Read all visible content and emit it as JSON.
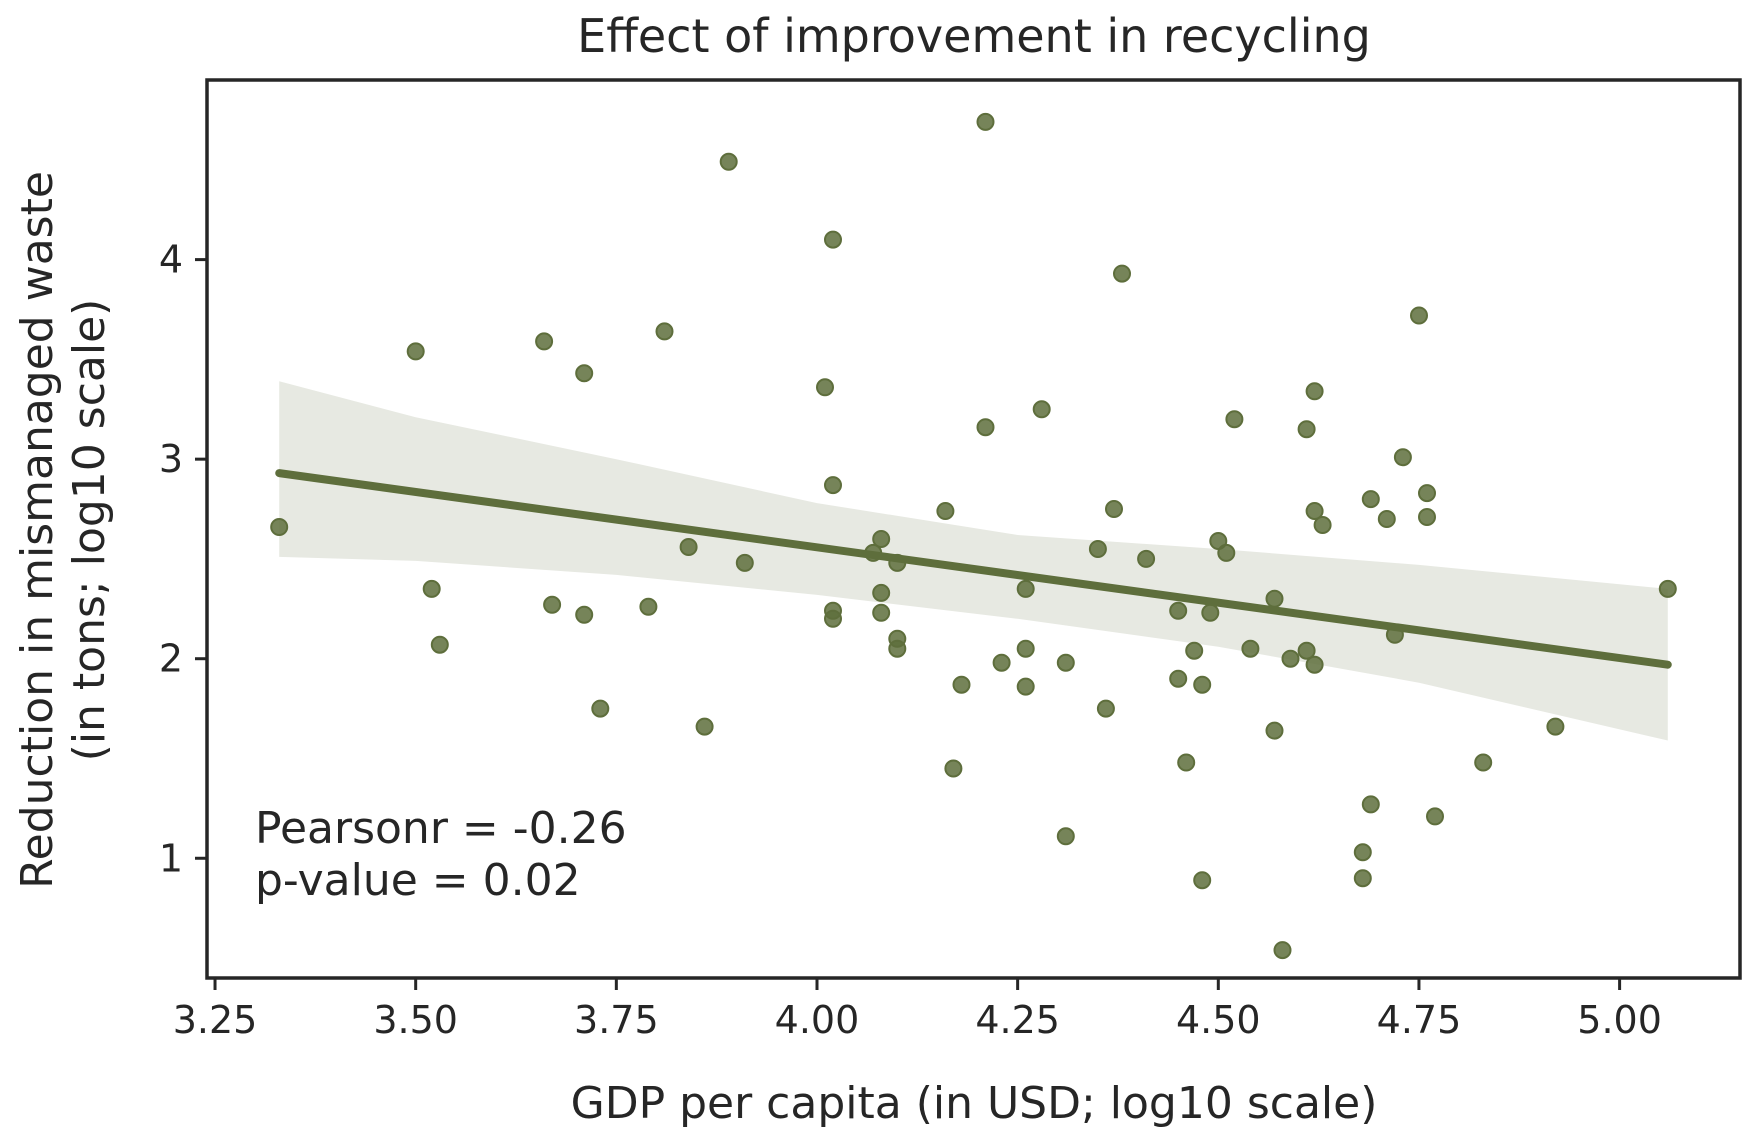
{
  "chart_data": {
    "type": "scatter",
    "title": "Effect of improvement in recycling",
    "xlabel": "GDP per capita (in USD; log10 scale)",
    "ylabel_lines": [
      "Reduction in mismanaged waste",
      "(in tons; log10 scale)"
    ],
    "xlim": [
      3.24,
      5.15
    ],
    "ylim": [
      0.4,
      4.9
    ],
    "xticks": [
      3.25,
      3.5,
      3.75,
      4.0,
      4.25,
      4.5,
      4.75,
      5.0
    ],
    "xtick_labels": [
      "3.25",
      "3.50",
      "3.75",
      "4.00",
      "4.25",
      "4.50",
      "4.75",
      "5.00"
    ],
    "yticks": [
      1,
      2,
      3,
      4
    ],
    "ytick_labels": [
      "1",
      "2",
      "3",
      "4"
    ],
    "grid": false,
    "colors": {
      "points": "#5e6e3c",
      "line": "#5e6e3c",
      "band": "#e7e9e2",
      "frame": "#262626"
    },
    "points": [
      [
        3.33,
        2.66
      ],
      [
        3.5,
        3.54
      ],
      [
        3.52,
        2.35
      ],
      [
        3.53,
        2.07
      ],
      [
        3.66,
        3.59
      ],
      [
        3.67,
        2.27
      ],
      [
        3.71,
        3.43
      ],
      [
        3.71,
        2.22
      ],
      [
        3.73,
        1.75
      ],
      [
        3.79,
        2.26
      ],
      [
        3.81,
        3.64
      ],
      [
        3.84,
        2.56
      ],
      [
        3.86,
        1.66
      ],
      [
        3.89,
        4.49
      ],
      [
        3.91,
        2.48
      ],
      [
        4.01,
        3.36
      ],
      [
        4.02,
        2.24
      ],
      [
        4.02,
        2.2
      ],
      [
        4.02,
        4.1
      ],
      [
        4.02,
        2.87
      ],
      [
        4.07,
        2.53
      ],
      [
        4.08,
        2.6
      ],
      [
        4.08,
        2.33
      ],
      [
        4.08,
        2.23
      ],
      [
        4.1,
        2.1
      ],
      [
        4.1,
        2.05
      ],
      [
        4.1,
        2.48
      ],
      [
        4.16,
        2.74
      ],
      [
        4.17,
        1.45
      ],
      [
        4.18,
        1.87
      ],
      [
        4.21,
        3.16
      ],
      [
        4.21,
        4.69
      ],
      [
        4.23,
        1.98
      ],
      [
        4.26,
        2.35
      ],
      [
        4.26,
        1.86
      ],
      [
        4.26,
        2.05
      ],
      [
        4.28,
        3.25
      ],
      [
        4.31,
        1.98
      ],
      [
        4.31,
        1.11
      ],
      [
        4.35,
        2.55
      ],
      [
        4.36,
        1.75
      ],
      [
        4.37,
        2.75
      ],
      [
        4.38,
        3.93
      ],
      [
        4.41,
        2.5
      ],
      [
        4.45,
        2.24
      ],
      [
        4.45,
        1.9
      ],
      [
        4.46,
        1.48
      ],
      [
        4.47,
        2.04
      ],
      [
        4.48,
        1.87
      ],
      [
        4.48,
        0.89
      ],
      [
        4.49,
        2.23
      ],
      [
        4.5,
        2.59
      ],
      [
        4.51,
        2.53
      ],
      [
        4.52,
        3.2
      ],
      [
        4.54,
        2.05
      ],
      [
        4.57,
        2.3
      ],
      [
        4.57,
        1.64
      ],
      [
        4.58,
        0.54
      ],
      [
        4.59,
        2.0
      ],
      [
        4.61,
        3.15
      ],
      [
        4.61,
        2.04
      ],
      [
        4.62,
        3.34
      ],
      [
        4.62,
        1.97
      ],
      [
        4.62,
        2.74
      ],
      [
        4.63,
        2.67
      ],
      [
        4.68,
        1.03
      ],
      [
        4.68,
        0.9
      ],
      [
        4.69,
        1.27
      ],
      [
        4.69,
        2.8
      ],
      [
        4.71,
        2.7
      ],
      [
        4.72,
        2.12
      ],
      [
        4.73,
        3.01
      ],
      [
        4.75,
        3.72
      ],
      [
        4.76,
        2.71
      ],
      [
        4.76,
        2.83
      ],
      [
        4.77,
        1.21
      ],
      [
        4.83,
        1.48
      ],
      [
        4.92,
        1.66
      ],
      [
        5.06,
        2.35
      ]
    ],
    "regression": {
      "x": [
        3.33,
        5.06
      ],
      "y": [
        2.93,
        1.97
      ]
    },
    "confidence_band": {
      "x": [
        3.33,
        3.5,
        3.75,
        4.0,
        4.25,
        4.5,
        4.75,
        5.06
      ],
      "upper": [
        3.39,
        3.21,
        3.0,
        2.78,
        2.62,
        2.55,
        2.47,
        2.35
      ],
      "lower": [
        2.51,
        2.49,
        2.42,
        2.32,
        2.2,
        2.06,
        1.88,
        1.59
      ]
    }
  },
  "annotation": {
    "line1": "Pearsonr = -0.26",
    "line2": "p-value = 0.02"
  }
}
